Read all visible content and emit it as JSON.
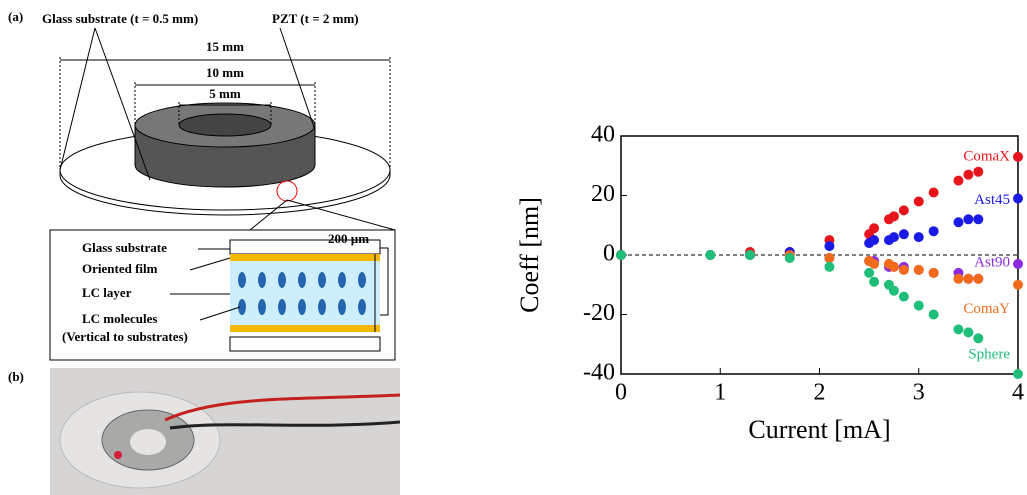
{
  "diagram": {
    "panel_a": "(a)",
    "glass_label": "Glass substrate (t = 0.5 mm)",
    "pzt_label": "PZT (t = 2 mm)",
    "dim_outer": "15 mm",
    "dim_middle": "10 mm",
    "dim_inner": "5 mm",
    "thickness": "200 µm",
    "layers": [
      "Glass substrate",
      "Oriented film",
      "LC layer",
      "LC molecules",
      "(Vertical to substrates)"
    ],
    "panel_b": "(b)"
  },
  "chart_data": {
    "type": "scatter",
    "xlabel": "Current [mA]",
    "ylabel": "Coeff [nm]",
    "x": [
      0,
      0.9,
      1.3,
      1.7,
      2.1,
      2.5,
      2.55,
      2.7,
      2.75,
      2.85,
      3.0,
      3.15,
      3.4,
      3.5,
      3.6,
      4.0
    ],
    "series": [
      {
        "name": "ComaX",
        "color": "#e8141c",
        "values": [
          0,
          0,
          1,
          1,
          5,
          7,
          9,
          12,
          13,
          15,
          18,
          21,
          25,
          27,
          28,
          33
        ]
      },
      {
        "name": "Ast45",
        "color": "#1a1ae6",
        "values": [
          0,
          0,
          0,
          1,
          3,
          4,
          5,
          5,
          6,
          7,
          6,
          8,
          11,
          12,
          12,
          19
        ]
      },
      {
        "name": "Ast90",
        "color": "#8a2be2",
        "values": [
          0,
          0,
          0,
          0,
          -1,
          -2,
          -2,
          -4,
          -4,
          -4,
          -5,
          -6,
          -6,
          -8,
          -8,
          -3
        ]
      },
      {
        "name": "ComaY",
        "color": "#f26b1d",
        "values": [
          0,
          0,
          0,
          0,
          -1,
          -2,
          -3,
          -3,
          -4,
          -5,
          -5,
          -6,
          -8,
          -8,
          -8,
          -10
        ]
      },
      {
        "name": "Sphere",
        "color": "#1fbf7a",
        "values": [
          0,
          0,
          0,
          -1,
          -4,
          -6,
          -9,
          -10,
          -12,
          -14,
          -17,
          -20,
          -25,
          -26,
          -28,
          -40
        ]
      }
    ],
    "xlim": [
      0,
      4
    ],
    "xticks": [
      0,
      1,
      2,
      3,
      4
    ],
    "ylim": [
      -40,
      40
    ],
    "yticks": [
      -40,
      -20,
      0,
      20,
      40
    ]
  }
}
